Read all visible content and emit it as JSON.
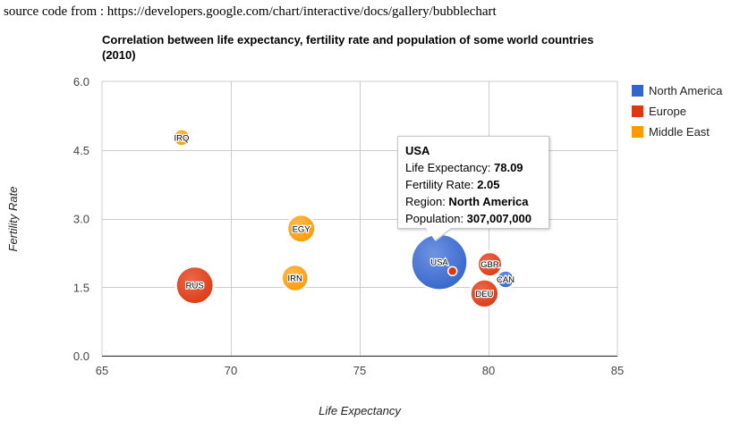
{
  "source_text": "source code from : https://developers.google.com/chart/interactive/docs/gallery/bubblechart",
  "chart_data": {
    "type": "scatter",
    "subtype": "bubble",
    "title": "Correlation between life expectancy, fertility rate and population of some world countries (2010)",
    "xlabel": "Life Expectancy",
    "ylabel": "Fertility Rate",
    "xlim": [
      65,
      85
    ],
    "ylim": [
      0,
      6
    ],
    "xticks": [
      "65",
      "70",
      "75",
      "80",
      "85"
    ],
    "yticks": [
      "0.0",
      "1.5",
      "3.0",
      "4.5",
      "6.0"
    ],
    "grid": true,
    "legend_position": "right",
    "series": [
      {
        "name": "North America",
        "color": "#3366cc"
      },
      {
        "name": "Europe",
        "color": "#dc3912"
      },
      {
        "name": "Middle East",
        "color": "#ff9900"
      }
    ],
    "points": [
      {
        "label": "CAN",
        "x": 80.66,
        "y": 1.67,
        "region": "North America",
        "population": 33739900
      },
      {
        "label": "DEU",
        "x": 79.84,
        "y": 1.36,
        "region": "Europe",
        "population": 81902307
      },
      {
        "label": "GBR",
        "x": 80.05,
        "y": 2.0,
        "region": "Europe",
        "population": 61801570
      },
      {
        "label": "IRN",
        "x": 72.49,
        "y": 1.7,
        "region": "Middle East",
        "population": 73137148
      },
      {
        "label": "IRQ",
        "x": 68.09,
        "y": 4.77,
        "region": "Middle East",
        "population": 31090763
      },
      {
        "label": "EGY",
        "x": 72.73,
        "y": 2.78,
        "region": "Middle East",
        "population": 79716203
      },
      {
        "label": "RUS",
        "x": 68.6,
        "y": 1.54,
        "region": "Europe",
        "population": 141850000
      },
      {
        "label": "USA",
        "x": 78.09,
        "y": 2.05,
        "region": "North America",
        "population": 307007000
      }
    ],
    "selected_marker": {
      "x": 78.6,
      "y": 1.85
    }
  },
  "tooltip": {
    "title": "USA",
    "life_label": "Life Expectancy: ",
    "life_value": "78.09",
    "fert_label": "Fertility Rate: ",
    "fert_value": "2.05",
    "region_label": "Region: ",
    "region_value": "North America",
    "pop_label": "Population: ",
    "pop_value": "307,007,000"
  }
}
